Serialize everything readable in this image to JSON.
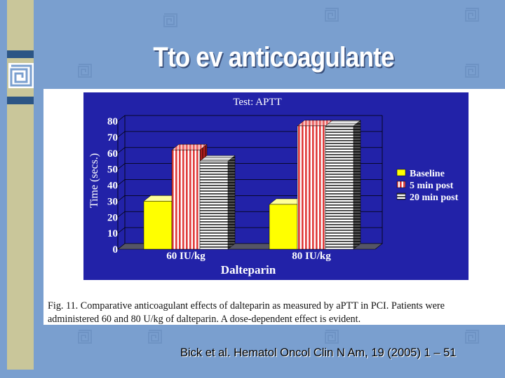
{
  "slide": {
    "title": "Tto ev anticoagulante",
    "citation": "Bick et al. Hematol Oncol Clin N Am, 19 (2005) 1 – 51",
    "caption_line1": "Fig. 11. Comparative anticoagulant effects of dalteparin as measured by aPTT in PCI. Patients were",
    "caption_line2": "administered 60 and 80 U/kg of dalteparin. A dose-dependent effect is evident."
  },
  "chart_data": {
    "type": "bar",
    "title": "Test: APTT",
    "xlabel": "Dalteparin",
    "ylabel": "Time (secs.)",
    "ylim": [
      0,
      80
    ],
    "yticks": [
      "0",
      "10",
      "20",
      "30",
      "40",
      "50",
      "60",
      "70",
      "80"
    ],
    "categories": [
      "60 IU/kg",
      "80 IU/kg"
    ],
    "series": [
      {
        "name": "Baseline",
        "values": [
          30,
          28
        ],
        "color": "#ffff00"
      },
      {
        "name": "5 min post",
        "values": [
          62,
          77
        ],
        "color": "#e03a3a"
      },
      {
        "name": "20 min post",
        "values": [
          55,
          77
        ],
        "color": "#4a4a4a"
      }
    ],
    "grid": true,
    "legend_position": "right",
    "plot_background": "#2222a8"
  }
}
